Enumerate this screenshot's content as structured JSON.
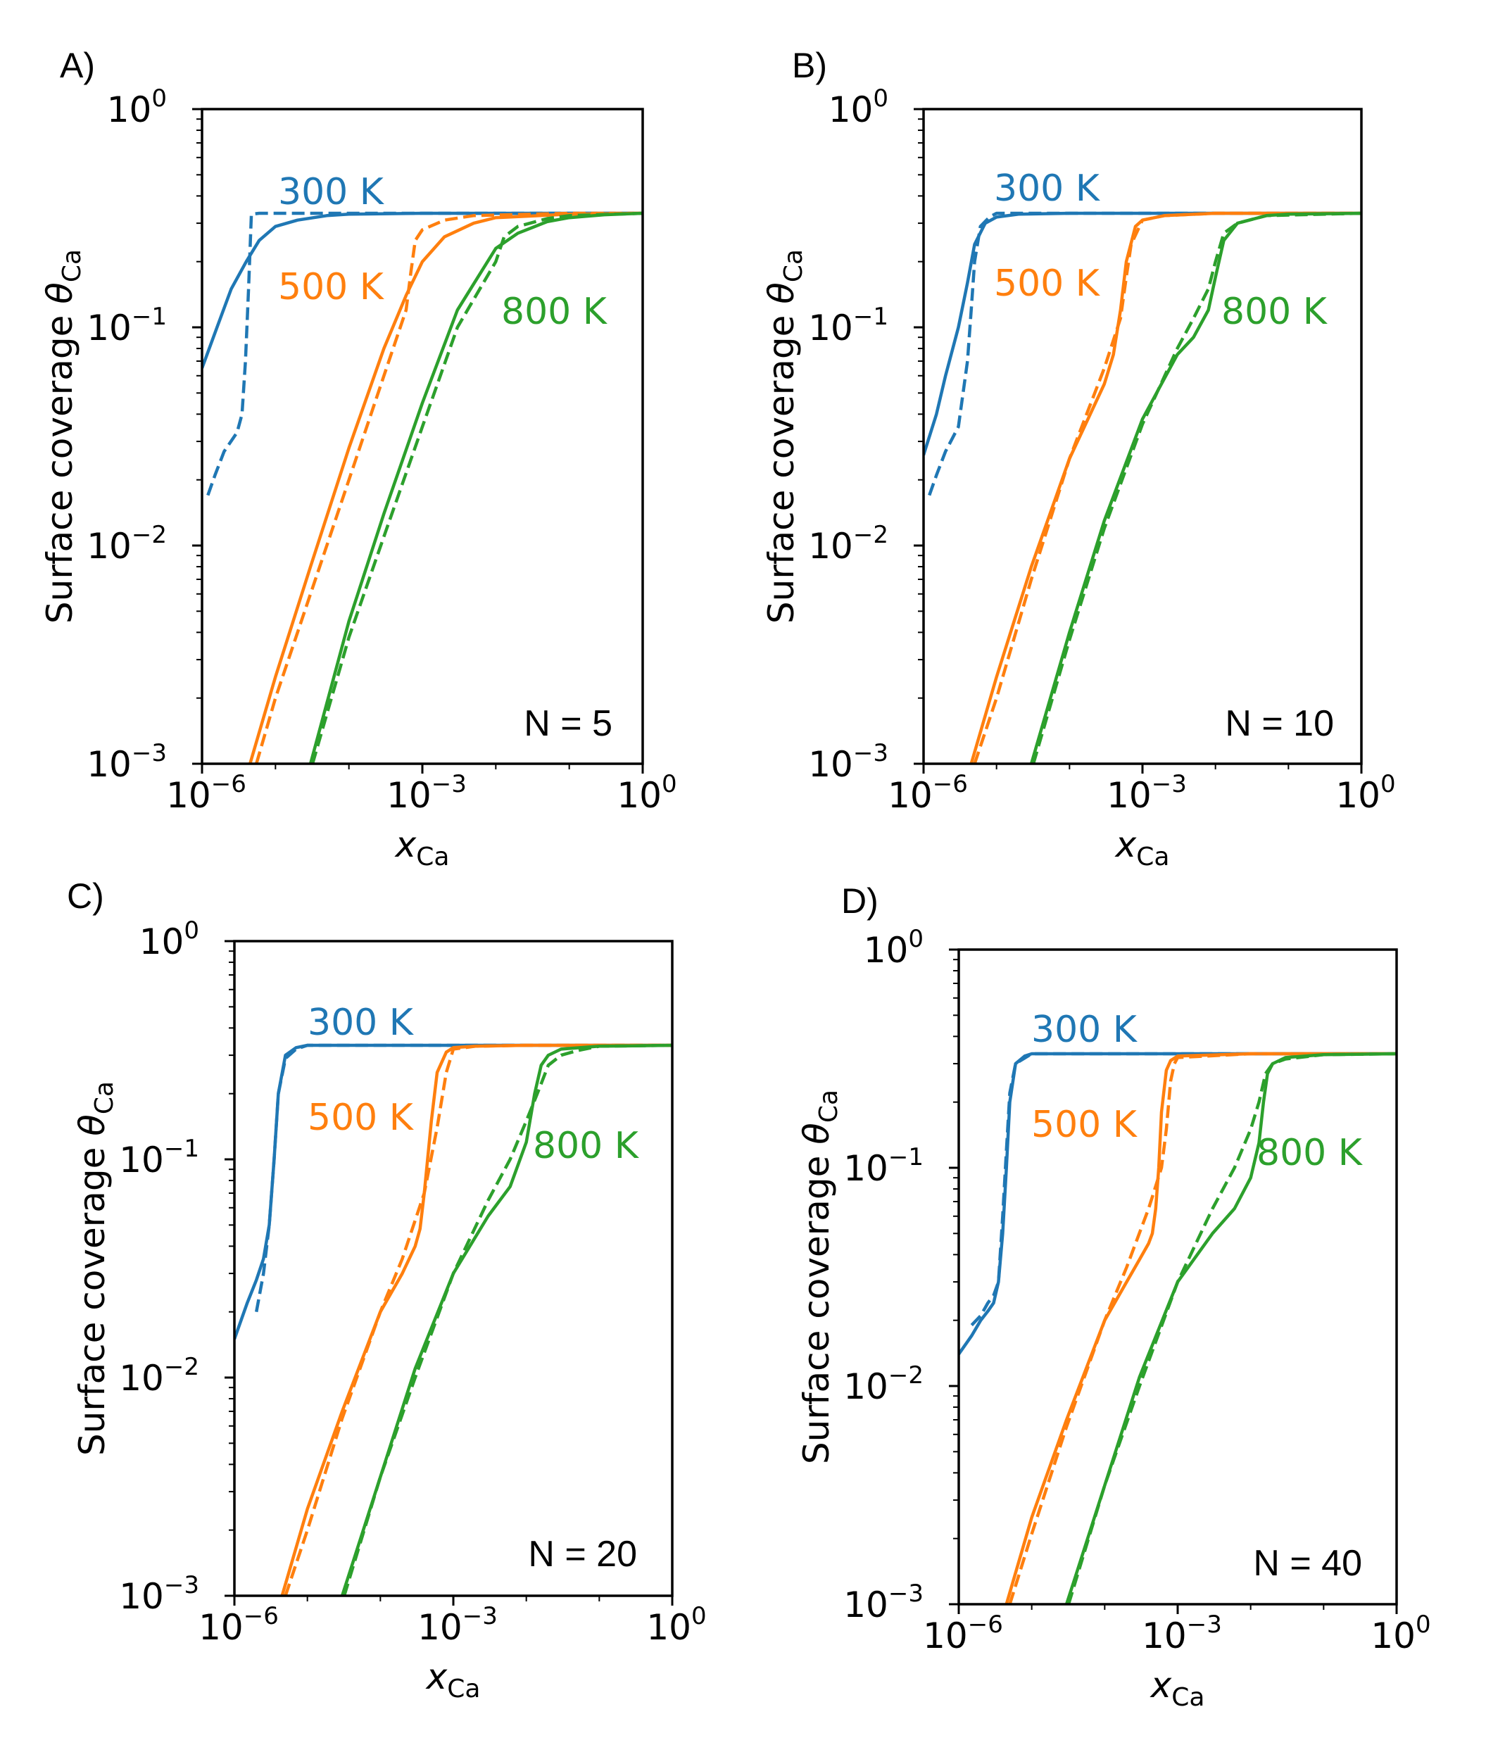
{
  "figure": {
    "colors": {
      "300 K": "#1f77b4",
      "500 K": "#ff7f0e",
      "800 K": "#2ca02c"
    },
    "legend_note": "solid and dashed lines are two curve sets per temperature"
  },
  "chart_data": [
    {
      "type": "line",
      "panel_label": "A)",
      "annotation": "N = 5",
      "title": "",
      "xlabel": "x_Ca",
      "ylabel": "Surface coverage θ_Ca",
      "xscale": "log",
      "yscale": "log",
      "xlim": [
        1e-06,
        1
      ],
      "ylim": [
        0.001,
        1
      ],
      "xticks": [
        {
          "base": "10",
          "exp": "−6",
          "value": 1e-06
        },
        {
          "base": "10",
          "exp": "−3",
          "value": 0.001
        },
        {
          "base": "10",
          "exp": "0",
          "value": 1
        }
      ],
      "yticks": [
        {
          "base": "10",
          "exp": "0",
          "value": 1
        },
        {
          "base": "10",
          "exp": "−1",
          "value": 0.1
        },
        {
          "base": "10",
          "exp": "−2",
          "value": 0.01
        },
        {
          "base": "10",
          "exp": "−3",
          "value": 0.001
        }
      ],
      "series": [
        {
          "name": "300 K",
          "style": "solid",
          "color": "#1f77b4",
          "x": [
            1e-06,
            1.6e-06,
            2.5e-06,
            4e-06,
            6e-06,
            1e-05,
            2e-05,
            5e-05,
            0.0001,
            0.001,
            0.01,
            1
          ],
          "y": [
            0.065,
            0.1,
            0.15,
            0.2,
            0.25,
            0.29,
            0.31,
            0.325,
            0.33,
            0.333,
            0.333,
            0.333
          ]
        },
        {
          "name": "300 K",
          "style": "dashed",
          "color": "#1f77b4",
          "x": [
            1.2e-06,
            1.5e-06,
            2e-06,
            3e-06,
            3.5e-06,
            3.9e-06,
            4.3e-06,
            4.7e-06,
            6e-06,
            1e-05,
            0.0001,
            0.01,
            1
          ],
          "y": [
            0.017,
            0.021,
            0.027,
            0.033,
            0.04,
            0.07,
            0.15,
            0.33,
            0.333,
            0.333,
            0.333,
            0.333,
            0.333
          ]
        },
        {
          "name": "500 K",
          "style": "solid",
          "color": "#ff7f0e",
          "x": [
            4.5e-06,
            1e-05,
            3e-05,
            0.0001,
            0.0003,
            0.0006,
            0.001,
            0.002,
            0.005,
            0.01,
            0.1,
            1
          ],
          "y": [
            0.001,
            0.0025,
            0.008,
            0.028,
            0.08,
            0.14,
            0.2,
            0.26,
            0.3,
            0.318,
            0.33,
            0.333
          ]
        },
        {
          "name": "500 K",
          "style": "dashed",
          "color": "#ff7f0e",
          "x": [
            5.5e-06,
            1e-05,
            3e-05,
            0.0001,
            0.0003,
            0.0006,
            0.0007,
            0.0008,
            0.001,
            0.002,
            0.005,
            0.1,
            1
          ],
          "y": [
            0.001,
            0.002,
            0.006,
            0.02,
            0.06,
            0.12,
            0.18,
            0.25,
            0.28,
            0.31,
            0.325,
            0.333,
            0.333
          ]
        },
        {
          "name": "800 K",
          "style": "solid",
          "color": "#2ca02c",
          "x": [
            3e-05,
            0.0001,
            0.0003,
            0.001,
            0.003,
            0.01,
            0.02,
            0.05,
            0.1,
            0.3,
            1
          ],
          "y": [
            0.001,
            0.0045,
            0.014,
            0.045,
            0.12,
            0.23,
            0.27,
            0.305,
            0.318,
            0.328,
            0.333
          ]
        },
        {
          "name": "800 K",
          "style": "dashed",
          "color": "#2ca02c",
          "x": [
            3.2e-05,
            0.0001,
            0.0003,
            0.001,
            0.003,
            0.01,
            0.013,
            0.02,
            0.05,
            0.1,
            1
          ],
          "y": [
            0.001,
            0.0038,
            0.011,
            0.035,
            0.1,
            0.2,
            0.26,
            0.29,
            0.315,
            0.325,
            0.333
          ]
        }
      ]
    },
    {
      "type": "line",
      "panel_label": "B)",
      "annotation": "N = 10",
      "title": "",
      "xlabel": "x_Ca",
      "ylabel": "Surface coverage θ_Ca",
      "xscale": "log",
      "yscale": "log",
      "xlim": [
        1e-06,
        1
      ],
      "ylim": [
        0.001,
        1
      ],
      "xticks": [
        {
          "base": "10",
          "exp": "−6",
          "value": 1e-06
        },
        {
          "base": "10",
          "exp": "−3",
          "value": 0.001
        },
        {
          "base": "10",
          "exp": "0",
          "value": 1
        }
      ],
      "yticks": [
        {
          "base": "10",
          "exp": "0",
          "value": 1
        },
        {
          "base": "10",
          "exp": "−1",
          "value": 0.1
        },
        {
          "base": "10",
          "exp": "−2",
          "value": 0.01
        },
        {
          "base": "10",
          "exp": "−3",
          "value": 0.001
        }
      ],
      "series": [
        {
          "name": "300 K",
          "style": "solid",
          "color": "#1f77b4",
          "x": [
            1e-06,
            1.5e-06,
            2e-06,
            3e-06,
            4e-06,
            5e-06,
            7e-06,
            1e-05,
            2e-05,
            0.0001,
            0.01,
            1
          ],
          "y": [
            0.026,
            0.04,
            0.06,
            0.1,
            0.16,
            0.24,
            0.3,
            0.32,
            0.33,
            0.333,
            0.333,
            0.333
          ]
        },
        {
          "name": "300 K",
          "style": "dashed",
          "color": "#1f77b4",
          "x": [
            1.2e-06,
            1.5e-06,
            2e-06,
            3e-06,
            4e-06,
            4.5e-06,
            5e-06,
            6e-06,
            8e-06,
            1e-05,
            0.0001,
            1
          ],
          "y": [
            0.017,
            0.021,
            0.027,
            0.035,
            0.07,
            0.12,
            0.2,
            0.29,
            0.32,
            0.333,
            0.333,
            0.333
          ]
        },
        {
          "name": "500 K",
          "style": "solid",
          "color": "#ff7f0e",
          "x": [
            4.5e-06,
            1e-05,
            3e-05,
            0.0001,
            0.0003,
            0.0004,
            0.0005,
            0.0006,
            0.0008,
            0.001,
            0.002,
            0.01,
            1
          ],
          "y": [
            0.001,
            0.0025,
            0.008,
            0.025,
            0.055,
            0.075,
            0.12,
            0.2,
            0.29,
            0.31,
            0.325,
            0.333,
            0.333
          ]
        },
        {
          "name": "500 K",
          "style": "dashed",
          "color": "#ff7f0e",
          "x": [
            5e-06,
            1e-05,
            3e-05,
            0.0001,
            0.0003,
            0.0005,
            0.0006,
            0.0007,
            0.001,
            0.002,
            0.01,
            1
          ],
          "y": [
            0.001,
            0.002,
            0.007,
            0.025,
            0.065,
            0.11,
            0.17,
            0.24,
            0.31,
            0.325,
            0.333,
            0.333
          ]
        },
        {
          "name": "800 K",
          "style": "solid",
          "color": "#2ca02c",
          "x": [
            3e-05,
            0.0001,
            0.0003,
            0.001,
            0.003,
            0.005,
            0.008,
            0.01,
            0.013,
            0.02,
            0.05,
            0.1,
            1
          ],
          "y": [
            0.001,
            0.004,
            0.013,
            0.038,
            0.075,
            0.09,
            0.12,
            0.17,
            0.25,
            0.3,
            0.325,
            0.33,
            0.333
          ]
        },
        {
          "name": "800 K",
          "style": "dashed",
          "color": "#2ca02c",
          "x": [
            3.2e-05,
            0.0001,
            0.0003,
            0.001,
            0.003,
            0.005,
            0.008,
            0.01,
            0.013,
            0.02,
            0.05,
            1
          ],
          "y": [
            0.001,
            0.0037,
            0.012,
            0.036,
            0.08,
            0.11,
            0.15,
            0.2,
            0.27,
            0.3,
            0.325,
            0.333
          ]
        }
      ]
    },
    {
      "type": "line",
      "panel_label": "C)",
      "annotation": "N = 20",
      "title": "",
      "xlabel": "x_Ca",
      "ylabel": "Surface coverage θ_Ca",
      "xscale": "log",
      "yscale": "log",
      "xlim": [
        1e-06,
        1
      ],
      "ylim": [
        0.001,
        1
      ],
      "xticks": [
        {
          "base": "10",
          "exp": "−6",
          "value": 1e-06
        },
        {
          "base": "10",
          "exp": "−3",
          "value": 0.001
        },
        {
          "base": "10",
          "exp": "0",
          "value": 1
        }
      ],
      "yticks": [
        {
          "base": "10",
          "exp": "0",
          "value": 1
        },
        {
          "base": "10",
          "exp": "−1",
          "value": 0.1
        },
        {
          "base": "10",
          "exp": "−2",
          "value": 0.01
        },
        {
          "base": "10",
          "exp": "−3",
          "value": 0.001
        }
      ],
      "series": [
        {
          "name": "300 K",
          "style": "solid",
          "color": "#1f77b4",
          "x": [
            1e-06,
            1.5e-06,
            2e-06,
            2.5e-06,
            3e-06,
            3.5e-06,
            4e-06,
            5e-06,
            7e-06,
            1e-05,
            0.0001,
            1
          ],
          "y": [
            0.015,
            0.022,
            0.028,
            0.035,
            0.05,
            0.1,
            0.2,
            0.3,
            0.325,
            0.333,
            0.333,
            0.333
          ]
        },
        {
          "name": "300 K",
          "style": "dashed",
          "color": "#1f77b4",
          "x": [
            2e-06,
            2.5e-06,
            3e-06,
            3.5e-06,
            4e-06,
            5e-06,
            7e-06,
            1e-05,
            0.0001,
            1
          ],
          "y": [
            0.02,
            0.03,
            0.05,
            0.1,
            0.2,
            0.29,
            0.32,
            0.333,
            0.333,
            0.333
          ]
        },
        {
          "name": "500 K",
          "style": "solid",
          "color": "#ff7f0e",
          "x": [
            4.5e-06,
            1e-05,
            3e-05,
            0.0001,
            0.0002,
            0.0003,
            0.00035,
            0.0004,
            0.0005,
            0.0006,
            0.0008,
            0.001,
            0.002,
            0.01,
            1
          ],
          "y": [
            0.001,
            0.0025,
            0.007,
            0.02,
            0.03,
            0.04,
            0.048,
            0.07,
            0.15,
            0.25,
            0.31,
            0.325,
            0.33,
            0.333,
            0.333
          ]
        },
        {
          "name": "500 K",
          "style": "dashed",
          "color": "#ff7f0e",
          "x": [
            5e-06,
            1e-05,
            3e-05,
            0.0001,
            0.0002,
            0.0004,
            0.0006,
            0.0008,
            0.001,
            0.002,
            0.01,
            1
          ],
          "y": [
            0.001,
            0.002,
            0.0065,
            0.02,
            0.035,
            0.07,
            0.14,
            0.25,
            0.32,
            0.33,
            0.333,
            0.333
          ]
        },
        {
          "name": "800 K",
          "style": "solid",
          "color": "#2ca02c",
          "x": [
            3e-05,
            0.0001,
            0.0003,
            0.001,
            0.003,
            0.006,
            0.01,
            0.013,
            0.016,
            0.02,
            0.03,
            0.1,
            1
          ],
          "y": [
            0.001,
            0.0035,
            0.011,
            0.03,
            0.055,
            0.075,
            0.12,
            0.2,
            0.27,
            0.3,
            0.32,
            0.33,
            0.333
          ]
        },
        {
          "name": "800 K",
          "style": "dashed",
          "color": "#2ca02c",
          "x": [
            3.2e-05,
            0.0001,
            0.0003,
            0.001,
            0.003,
            0.006,
            0.01,
            0.015,
            0.02,
            0.03,
            0.05,
            0.1,
            1
          ],
          "y": [
            0.001,
            0.0035,
            0.01,
            0.03,
            0.065,
            0.1,
            0.15,
            0.21,
            0.27,
            0.3,
            0.315,
            0.33,
            0.333
          ]
        }
      ]
    },
    {
      "type": "line",
      "panel_label": "D)",
      "annotation": "N = 40",
      "title": "",
      "xlabel": "x_Ca",
      "ylabel": "Surface coverage θ_Ca",
      "xscale": "log",
      "yscale": "log",
      "xlim": [
        1e-06,
        1
      ],
      "ylim": [
        0.001,
        1
      ],
      "xticks": [
        {
          "base": "10",
          "exp": "−6",
          "value": 1e-06
        },
        {
          "base": "10",
          "exp": "−3",
          "value": 0.001
        },
        {
          "base": "10",
          "exp": "0",
          "value": 1
        }
      ],
      "yticks": [
        {
          "base": "10",
          "exp": "0",
          "value": 1
        },
        {
          "base": "10",
          "exp": "−1",
          "value": 0.1
        },
        {
          "base": "10",
          "exp": "−2",
          "value": 0.01
        },
        {
          "base": "10",
          "exp": "−3",
          "value": 0.001
        }
      ],
      "series": [
        {
          "name": "300 K",
          "style": "solid",
          "color": "#1f77b4",
          "x": [
            1e-06,
            1.5e-06,
            2e-06,
            2.5e-06,
            3e-06,
            3.5e-06,
            4e-06,
            4.5e-06,
            5e-06,
            6e-06,
            8e-06,
            1e-05,
            0.0001,
            1
          ],
          "y": [
            0.014,
            0.017,
            0.02,
            0.022,
            0.024,
            0.03,
            0.05,
            0.1,
            0.2,
            0.3,
            0.325,
            0.333,
            0.333,
            0.333
          ]
        },
        {
          "name": "300 K",
          "style": "dashed",
          "color": "#1f77b4",
          "x": [
            1.5e-06,
            2e-06,
            2.5e-06,
            3e-06,
            3.5e-06,
            4e-06,
            4.5e-06,
            5e-06,
            6e-06,
            1e-05,
            0.0001,
            1
          ],
          "y": [
            0.019,
            0.021,
            0.024,
            0.026,
            0.03,
            0.06,
            0.12,
            0.22,
            0.3,
            0.333,
            0.333,
            0.333
          ]
        },
        {
          "name": "500 K",
          "style": "solid",
          "color": "#ff7f0e",
          "x": [
            4.5e-06,
            1e-05,
            3e-05,
            0.0001,
            0.0002,
            0.0003,
            0.0004,
            0.00045,
            0.0005,
            0.00055,
            0.0006,
            0.0007,
            0.0008,
            0.001,
            0.01,
            1
          ],
          "y": [
            0.001,
            0.0025,
            0.007,
            0.02,
            0.03,
            0.038,
            0.045,
            0.05,
            0.065,
            0.1,
            0.18,
            0.28,
            0.31,
            0.325,
            0.333,
            0.333
          ]
        },
        {
          "name": "500 K",
          "style": "dashed",
          "color": "#ff7f0e",
          "x": [
            5e-06,
            1e-05,
            3e-05,
            0.0001,
            0.0002,
            0.0004,
            0.0006,
            0.0007,
            0.0008,
            0.0009,
            0.001,
            0.01,
            1
          ],
          "y": [
            0.001,
            0.0021,
            0.0065,
            0.02,
            0.035,
            0.065,
            0.1,
            0.15,
            0.25,
            0.3,
            0.32,
            0.333,
            0.333
          ]
        },
        {
          "name": "800 K",
          "style": "solid",
          "color": "#2ca02c",
          "x": [
            3e-05,
            0.0001,
            0.0003,
            0.001,
            0.003,
            0.006,
            0.01,
            0.013,
            0.015,
            0.017,
            0.02,
            0.03,
            0.1,
            1
          ],
          "y": [
            0.001,
            0.0035,
            0.011,
            0.03,
            0.05,
            0.065,
            0.09,
            0.13,
            0.2,
            0.27,
            0.3,
            0.32,
            0.33,
            0.333
          ]
        },
        {
          "name": "800 K",
          "style": "dashed",
          "color": "#2ca02c",
          "x": [
            3.2e-05,
            0.0001,
            0.0003,
            0.001,
            0.003,
            0.006,
            0.01,
            0.013,
            0.016,
            0.02,
            0.03,
            0.1,
            1
          ],
          "y": [
            0.001,
            0.0035,
            0.01,
            0.03,
            0.065,
            0.1,
            0.15,
            0.2,
            0.27,
            0.3,
            0.315,
            0.33,
            0.333
          ]
        }
      ]
    }
  ]
}
